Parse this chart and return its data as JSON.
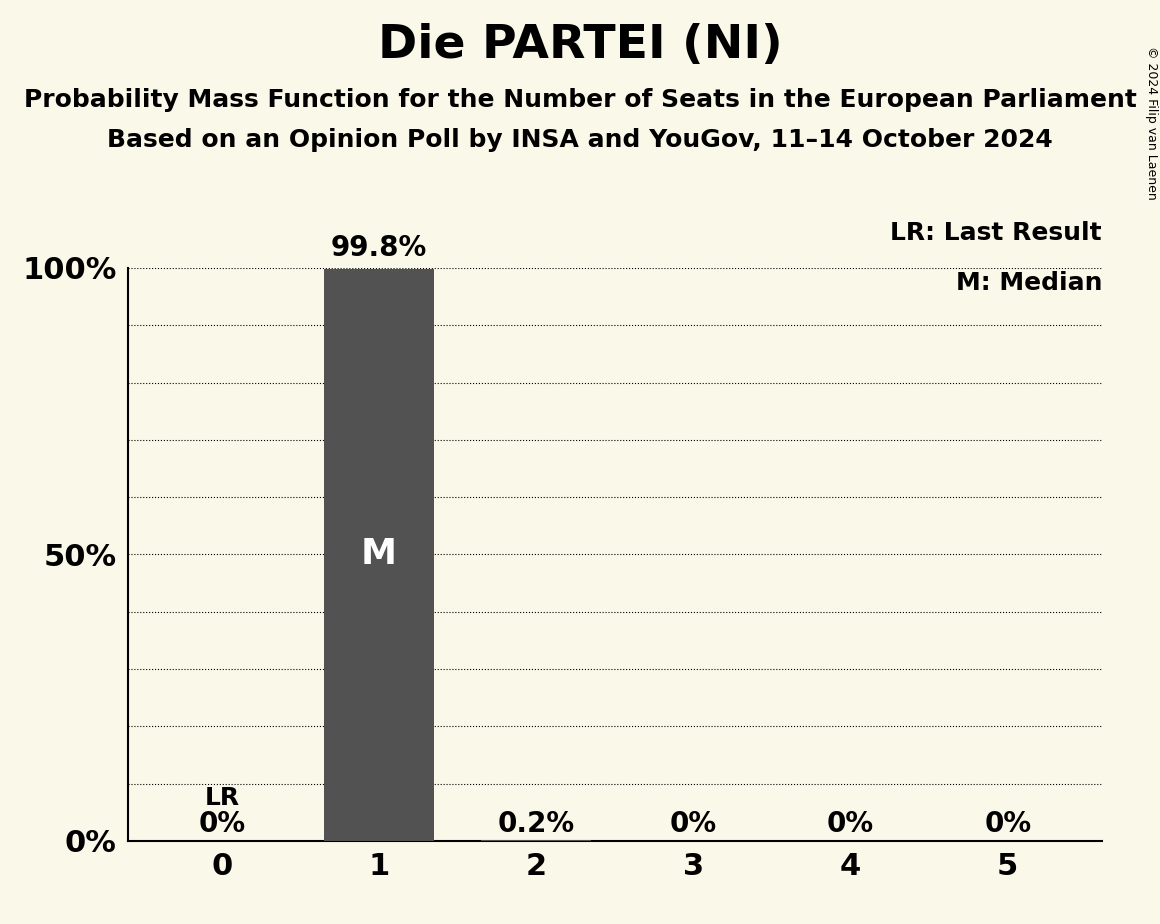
{
  "title": "Die PARTEI (NI)",
  "subtitle1": "Probability Mass Function for the Number of Seats in the European Parliament",
  "subtitle2": "Based on an Opinion Poll by INSA and YouGov, 11–14 October 2024",
  "copyright": "© 2024 Filip van Laenen",
  "seats": [
    0,
    1,
    2,
    3,
    4,
    5
  ],
  "probabilities": [
    0.0,
    0.998,
    0.002,
    0.0,
    0.0,
    0.0
  ],
  "prob_labels": [
    "0%",
    "99.8%",
    "0.2%",
    "0%",
    "0%",
    "0%"
  ],
  "bar_color": "#525252",
  "background_color": "#faf8e8",
  "median_seat": 1,
  "last_result_seat": 0,
  "lr_label": "LR",
  "lr_label_legend": "LR: Last Result",
  "m_label": "M",
  "m_label_legend": "M: Median",
  "ylim": [
    0,
    1.0
  ],
  "yticks": [
    0.0,
    0.1,
    0.2,
    0.3,
    0.4,
    0.5,
    0.6,
    0.7,
    0.8,
    0.9,
    1.0
  ],
  "ytick_labels": [
    "0%",
    "",
    "",
    "",
    "",
    "50%",
    "",
    "",
    "",
    "",
    "100%"
  ],
  "title_fontsize": 34,
  "subtitle_fontsize": 18,
  "axis_tick_fontsize": 22,
  "bar_label_fontsize": 20,
  "legend_fontsize": 18,
  "lr_bar_label_fontsize": 18,
  "m_inside_fontsize": 26,
  "copyright_fontsize": 9,
  "bar_width": 0.7
}
